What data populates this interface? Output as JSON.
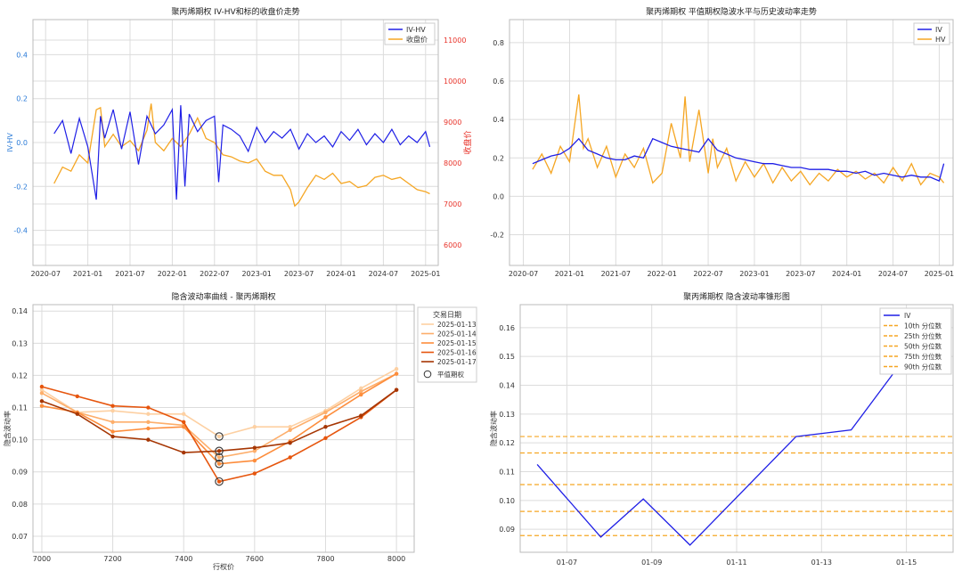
{
  "colors": {
    "iv": "#1f1fe6",
    "hv": "#f5a623",
    "price_axis": "#e8332a",
    "left_axis": "#2b7bd8",
    "grid": "#dcdcdc",
    "quantile": "#f5a623",
    "smile": [
      "#fdd0a2",
      "#fdae6b",
      "#fd8d3c",
      "#e6550d",
      "#a63603"
    ]
  },
  "chart_data": [
    {
      "type": "line",
      "title": "聚丙烯期权 IV-HV和标的收盘价走势",
      "ylabel": "IV-HV",
      "y2label": "收盘价",
      "ylim": [
        -0.56,
        0.56
      ],
      "y2lim": [
        5500,
        11500
      ],
      "yticks": [
        "-0.4",
        "-0.2",
        "0.0",
        "0.2",
        "0.4"
      ],
      "yticks_values": [
        -0.4,
        -0.2,
        0.0,
        0.2,
        0.4
      ],
      "y2ticks": [
        "6000",
        "7000",
        "8000",
        "9000",
        "10000",
        "11000"
      ],
      "y2ticks_values": [
        6000,
        7000,
        8000,
        9000,
        10000,
        11000
      ],
      "xticks": [
        "2020-07",
        "2021-01",
        "2021-07",
        "2022-01",
        "2022-07",
        "2023-01",
        "2023-07",
        "2024-01",
        "2024-07",
        "2025-01"
      ],
      "xticks_values": [
        2020.5,
        2021.0,
        2021.5,
        2022.0,
        2022.5,
        2023.0,
        2023.5,
        2024.0,
        2024.5,
        2025.0
      ],
      "xlim": [
        2020.35,
        2025.15
      ],
      "legend": [
        "IV-HV",
        "收盘价"
      ],
      "legend_position": "top-right",
      "grid": true,
      "series": [
        {
          "name": "IV-HV",
          "axis": "left",
          "x": [
            2020.6,
            2020.7,
            2020.8,
            2020.9,
            2021.0,
            2021.1,
            2021.15,
            2021.2,
            2021.3,
            2021.4,
            2021.5,
            2021.6,
            2021.7,
            2021.8,
            2021.9,
            2022.0,
            2022.05,
            2022.1,
            2022.15,
            2022.2,
            2022.3,
            2022.4,
            2022.5,
            2022.55,
            2022.6,
            2022.7,
            2022.8,
            2022.9,
            2023.0,
            2023.1,
            2023.2,
            2023.3,
            2023.4,
            2023.5,
            2023.6,
            2023.7,
            2023.8,
            2023.9,
            2024.0,
            2024.1,
            2024.2,
            2024.3,
            2024.4,
            2024.5,
            2024.6,
            2024.7,
            2024.8,
            2024.9,
            2025.0,
            2025.05
          ],
          "values": [
            0.04,
            0.1,
            -0.05,
            0.11,
            -0.02,
            -0.26,
            0.12,
            0.02,
            0.15,
            -0.03,
            0.14,
            -0.1,
            0.12,
            0.04,
            0.08,
            0.15,
            -0.26,
            0.17,
            -0.2,
            0.13,
            0.05,
            0.1,
            0.12,
            -0.18,
            0.08,
            0.06,
            0.03,
            -0.04,
            0.07,
            0.0,
            0.05,
            0.02,
            0.06,
            -0.03,
            0.04,
            0.0,
            0.03,
            -0.02,
            0.05,
            0.01,
            0.06,
            -0.01,
            0.04,
            0.0,
            0.06,
            -0.01,
            0.03,
            0.0,
            0.05,
            -0.02
          ]
        },
        {
          "name": "收盘价",
          "axis": "right",
          "x": [
            2020.6,
            2020.7,
            2020.8,
            2020.9,
            2021.0,
            2021.1,
            2021.15,
            2021.2,
            2021.3,
            2021.4,
            2021.5,
            2021.6,
            2021.7,
            2021.75,
            2021.8,
            2021.9,
            2022.0,
            2022.1,
            2022.2,
            2022.3,
            2022.4,
            2022.5,
            2022.6,
            2022.7,
            2022.8,
            2022.9,
            2023.0,
            2023.1,
            2023.2,
            2023.3,
            2023.4,
            2023.45,
            2023.5,
            2023.6,
            2023.7,
            2023.8,
            2023.9,
            2024.0,
            2024.1,
            2024.2,
            2024.3,
            2024.4,
            2024.5,
            2024.6,
            2024.7,
            2024.8,
            2024.9,
            2025.0,
            2025.05
          ],
          "values": [
            7500,
            7900,
            7800,
            8200,
            8000,
            9300,
            9350,
            8400,
            8700,
            8400,
            8550,
            8300,
            8800,
            9450,
            8500,
            8300,
            8600,
            8400,
            8700,
            9100,
            8600,
            8500,
            8200,
            8150,
            8050,
            8000,
            8100,
            7800,
            7700,
            7700,
            7350,
            6950,
            7050,
            7400,
            7700,
            7600,
            7750,
            7500,
            7550,
            7400,
            7450,
            7650,
            7700,
            7600,
            7650,
            7500,
            7350,
            7300,
            7250
          ]
        }
      ]
    },
    {
      "type": "line",
      "title": "聚丙烯期权 平值期权隐波水平与历史波动率走势",
      "ylim": [
        -0.36,
        0.92
      ],
      "yticks": [
        "-0.2",
        "0.0",
        "0.2",
        "0.4",
        "0.6",
        "0.8"
      ],
      "yticks_values": [
        -0.2,
        0.0,
        0.2,
        0.4,
        0.6,
        0.8
      ],
      "xticks": [
        "2020-07",
        "2021-01",
        "2021-07",
        "2022-01",
        "2022-07",
        "2023-01",
        "2023-07",
        "2024-01",
        "2024-07",
        "2025-01"
      ],
      "xticks_values": [
        2020.5,
        2021.0,
        2021.5,
        2022.0,
        2022.5,
        2023.0,
        2023.5,
        2024.0,
        2024.5,
        2025.0
      ],
      "xlim": [
        2020.35,
        2025.15
      ],
      "legend": [
        "IV",
        "HV"
      ],
      "legend_position": "top-right",
      "grid": true,
      "series": [
        {
          "name": "IV",
          "x": [
            2020.6,
            2020.7,
            2020.8,
            2020.9,
            2021.0,
            2021.1,
            2021.2,
            2021.3,
            2021.4,
            2021.5,
            2021.6,
            2021.7,
            2021.8,
            2021.9,
            2022.0,
            2022.1,
            2022.2,
            2022.3,
            2022.4,
            2022.5,
            2022.6,
            2022.7,
            2022.8,
            2022.9,
            2023.0,
            2023.1,
            2023.2,
            2023.3,
            2023.4,
            2023.5,
            2023.6,
            2023.7,
            2023.8,
            2023.9,
            2024.0,
            2024.1,
            2024.2,
            2024.3,
            2024.4,
            2024.5,
            2024.6,
            2024.7,
            2024.8,
            2024.9,
            2025.0,
            2025.05
          ],
          "values": [
            0.17,
            0.19,
            0.21,
            0.22,
            0.25,
            0.3,
            0.24,
            0.22,
            0.2,
            0.19,
            0.19,
            0.21,
            0.2,
            0.3,
            0.28,
            0.26,
            0.25,
            0.24,
            0.23,
            0.3,
            0.24,
            0.22,
            0.2,
            0.19,
            0.18,
            0.17,
            0.17,
            0.16,
            0.15,
            0.15,
            0.14,
            0.14,
            0.14,
            0.13,
            0.13,
            0.12,
            0.13,
            0.11,
            0.12,
            0.11,
            0.1,
            0.11,
            0.1,
            0.1,
            0.08,
            0.17
          ]
        },
        {
          "name": "HV",
          "x": [
            2020.6,
            2020.7,
            2020.8,
            2020.9,
            2021.0,
            2021.1,
            2021.15,
            2021.2,
            2021.3,
            2021.4,
            2021.5,
            2021.6,
            2021.7,
            2021.8,
            2021.9,
            2022.0,
            2022.1,
            2022.2,
            2022.25,
            2022.3,
            2022.4,
            2022.5,
            2022.55,
            2022.6,
            2022.7,
            2022.8,
            2022.9,
            2023.0,
            2023.1,
            2023.2,
            2023.3,
            2023.4,
            2023.5,
            2023.6,
            2023.7,
            2023.8,
            2023.9,
            2024.0,
            2024.1,
            2024.2,
            2024.3,
            2024.4,
            2024.5,
            2024.6,
            2024.7,
            2024.8,
            2024.9,
            2025.0,
            2025.05
          ],
          "values": [
            0.14,
            0.22,
            0.12,
            0.26,
            0.18,
            0.53,
            0.25,
            0.3,
            0.15,
            0.26,
            0.1,
            0.22,
            0.15,
            0.25,
            0.07,
            0.12,
            0.38,
            0.2,
            0.52,
            0.18,
            0.45,
            0.12,
            0.3,
            0.15,
            0.25,
            0.08,
            0.18,
            0.1,
            0.17,
            0.07,
            0.15,
            0.08,
            0.13,
            0.06,
            0.12,
            0.08,
            0.14,
            0.1,
            0.13,
            0.09,
            0.12,
            0.07,
            0.15,
            0.08,
            0.17,
            0.06,
            0.12,
            0.1,
            0.07
          ]
        }
      ]
    },
    {
      "type": "line",
      "title": "隐含波动率曲线 - 聚丙烯期权",
      "xlabel": "行权价",
      "ylabel": "隐含波动率",
      "xlim": [
        6975,
        8050
      ],
      "ylim": [
        0.065,
        0.142
      ],
      "xticks": [
        "7000",
        "7200",
        "7400",
        "7600",
        "7800",
        "8000"
      ],
      "xticks_values": [
        7000,
        7200,
        7400,
        7600,
        7800,
        8000
      ],
      "yticks": [
        "0.07",
        "0.08",
        "0.09",
        "0.10",
        "0.11",
        "0.12",
        "0.13",
        "0.14"
      ],
      "yticks_values": [
        0.07,
        0.08,
        0.09,
        0.1,
        0.11,
        0.12,
        0.13,
        0.14
      ],
      "legend_title": "交易日期",
      "legend": [
        "2025-01-13",
        "2025-01-14",
        "2025-01-15",
        "2025-01-16",
        "2025-01-17",
        "平值期权"
      ],
      "legend_position": "top-right",
      "grid": true,
      "x": [
        7000,
        7100,
        7200,
        7300,
        7400,
        7500,
        7600,
        7700,
        7800,
        7900,
        8000
      ],
      "series": [
        {
          "name": "2025-01-13",
          "values": [
            0.1155,
            0.1085,
            0.109,
            0.108,
            0.108,
            0.101,
            0.104,
            0.104,
            0.109,
            0.116,
            0.122
          ]
        },
        {
          "name": "2025-01-14",
          "values": [
            0.1145,
            0.1085,
            0.1055,
            0.1055,
            0.1045,
            0.0945,
            0.0965,
            0.103,
            0.1085,
            0.115,
            0.1205
          ]
        },
        {
          "name": "2025-01-15",
          "values": [
            0.1105,
            0.1085,
            0.1025,
            0.1035,
            0.104,
            0.0925,
            0.0935,
            0.0995,
            0.107,
            0.114,
            0.1205
          ]
        },
        {
          "name": "2025-01-16",
          "values": [
            0.1165,
            0.1135,
            0.1105,
            0.11,
            0.1055,
            0.087,
            0.0895,
            0.0945,
            0.1005,
            0.107,
            0.1155
          ]
        },
        {
          "name": "2025-01-17",
          "values": [
            0.112,
            0.108,
            0.101,
            0.1,
            0.096,
            0.0965,
            0.0975,
            0.099,
            0.104,
            0.1075,
            0.1155
          ]
        }
      ],
      "atm": {
        "strike": 7500,
        "values": [
          0.101,
          0.0945,
          0.0925,
          0.087,
          0.0965
        ]
      }
    },
    {
      "type": "line",
      "title": "聚丙烯期权 隐含波动率锥形图",
      "ylabel": "隐含波动率",
      "xlim": [
        0.4,
        10.6
      ],
      "ylim": [
        0.082,
        0.168
      ],
      "yticks": [
        "0.09",
        "0.10",
        "0.11",
        "0.12",
        "0.13",
        "0.14",
        "0.15",
        "0.16"
      ],
      "yticks_values": [
        0.09,
        0.1,
        0.11,
        0.12,
        0.13,
        0.14,
        0.15,
        0.16
      ],
      "xticks": [
        "01-07",
        "01-09",
        "01-11",
        "01-13",
        "01-15"
      ],
      "xticks_values": [
        1.5,
        3.5,
        5.5,
        7.5,
        9.5
      ],
      "legend": [
        "IV",
        "10th 分位数",
        "25th 分位数",
        "50th 分位数",
        "75th 分位数",
        "90th 分位数"
      ],
      "legend_position": "top-right",
      "grid": true,
      "series": [
        {
          "name": "IV",
          "x": [
            0.8,
            2.3,
            3.3,
            4.4,
            6.9,
            8.2,
            10.3
          ],
          "values": [
            0.1125,
            0.0873,
            0.1005,
            0.0845,
            0.1222,
            0.1245,
            0.166
          ]
        }
      ],
      "quantiles": [
        {
          "name": "10th 分位数",
          "value": 0.0878
        },
        {
          "name": "25th 分位数",
          "value": 0.0962
        },
        {
          "name": "50th 分位数",
          "value": 0.1055
        },
        {
          "name": "75th 分位数",
          "value": 0.1165
        },
        {
          "name": "90th 分位数",
          "value": 0.1222
        }
      ]
    }
  ]
}
